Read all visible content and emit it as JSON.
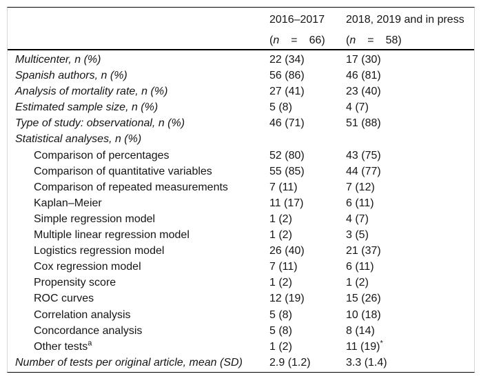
{
  "colors": {
    "background": "#ffffff",
    "text": "#151515",
    "rule_black": "#000000",
    "frame_gray": "#d6d6d6"
  },
  "header": {
    "col1": {
      "period": "2016–2017",
      "open": "(",
      "nvar": "n",
      "eq": "=",
      "count": "66)"
    },
    "col2": {
      "period": "2018, 2019 and in press",
      "open": "(",
      "nvar": "n",
      "eq": "=",
      "count": "58)"
    }
  },
  "rows": [
    {
      "label": "Multicenter, n (%)",
      "italic": true,
      "indent": false,
      "v1": "22 (34)",
      "v2": "17 (30)"
    },
    {
      "label": "Spanish authors, n (%)",
      "italic": true,
      "indent": false,
      "v1": "56 (86)",
      "v2": "46 (81)"
    },
    {
      "label": "Analysis of mortality rate, n (%)",
      "italic": true,
      "indent": false,
      "v1": "27 (41)",
      "v2": "23 (40)"
    },
    {
      "label": "Estimated sample size, n (%)",
      "italic": true,
      "indent": false,
      "v1": "5 (8)",
      "v2": "4 (7)"
    },
    {
      "label": "Type of study: observational, n (%)",
      "italic": true,
      "indent": false,
      "v1": "46 (71)",
      "v2": "51 (88)"
    },
    {
      "label": "Statistical analyses, n (%)",
      "italic": true,
      "indent": false,
      "v1": "",
      "v2": ""
    },
    {
      "label": "Comparison of percentages",
      "italic": false,
      "indent": true,
      "v1": "52 (80)",
      "v2": "43 (75)"
    },
    {
      "label": "Comparison of quantitative variables",
      "italic": false,
      "indent": true,
      "v1": "55 (85)",
      "v2": "44 (77)"
    },
    {
      "label": "Comparison of repeated measurements",
      "italic": false,
      "indent": true,
      "v1": "7 (11)",
      "v2": "7 (12)"
    },
    {
      "label": "Kaplan–Meier",
      "italic": false,
      "indent": true,
      "v1": "11 (17)",
      "v2": "6 (11)"
    },
    {
      "label": "Simple regression model",
      "italic": false,
      "indent": true,
      "v1": "1 (2)",
      "v2": "4 (7)"
    },
    {
      "label": "Multiple linear regression model",
      "italic": false,
      "indent": true,
      "v1": "1 (2)",
      "v2": "3 (5)"
    },
    {
      "label": "Logistics regression model",
      "italic": false,
      "indent": true,
      "v1": "26 (40)",
      "v2": "21 (37)"
    },
    {
      "label": "Cox regression model",
      "italic": false,
      "indent": true,
      "v1": "7 (11)",
      "v2": "6 (11)"
    },
    {
      "label": "Propensity score",
      "italic": false,
      "indent": true,
      "v1": "1 (2)",
      "v2": "1 (2)"
    },
    {
      "label": "ROC curves",
      "italic": false,
      "indent": true,
      "v1": "12 (19)",
      "v2": "15 (26)"
    },
    {
      "label": "Correlation analysis",
      "italic": false,
      "indent": true,
      "v1": "5 (8)",
      "v2": "10 (18)"
    },
    {
      "label": "Concordance analysis",
      "italic": false,
      "indent": true,
      "v1": "5 (8)",
      "v2": "8 (14)"
    },
    {
      "label": "Other tests",
      "label_sup": "a",
      "italic": false,
      "indent": true,
      "v1": "1 (2)",
      "v2": "11 (19)",
      "v2_sup": "*"
    },
    {
      "label": "Number of tests per original article, mean (SD)",
      "italic": true,
      "indent": false,
      "v1": "2.9 (1.2)",
      "v2": "3.3 (1.4)"
    }
  ]
}
